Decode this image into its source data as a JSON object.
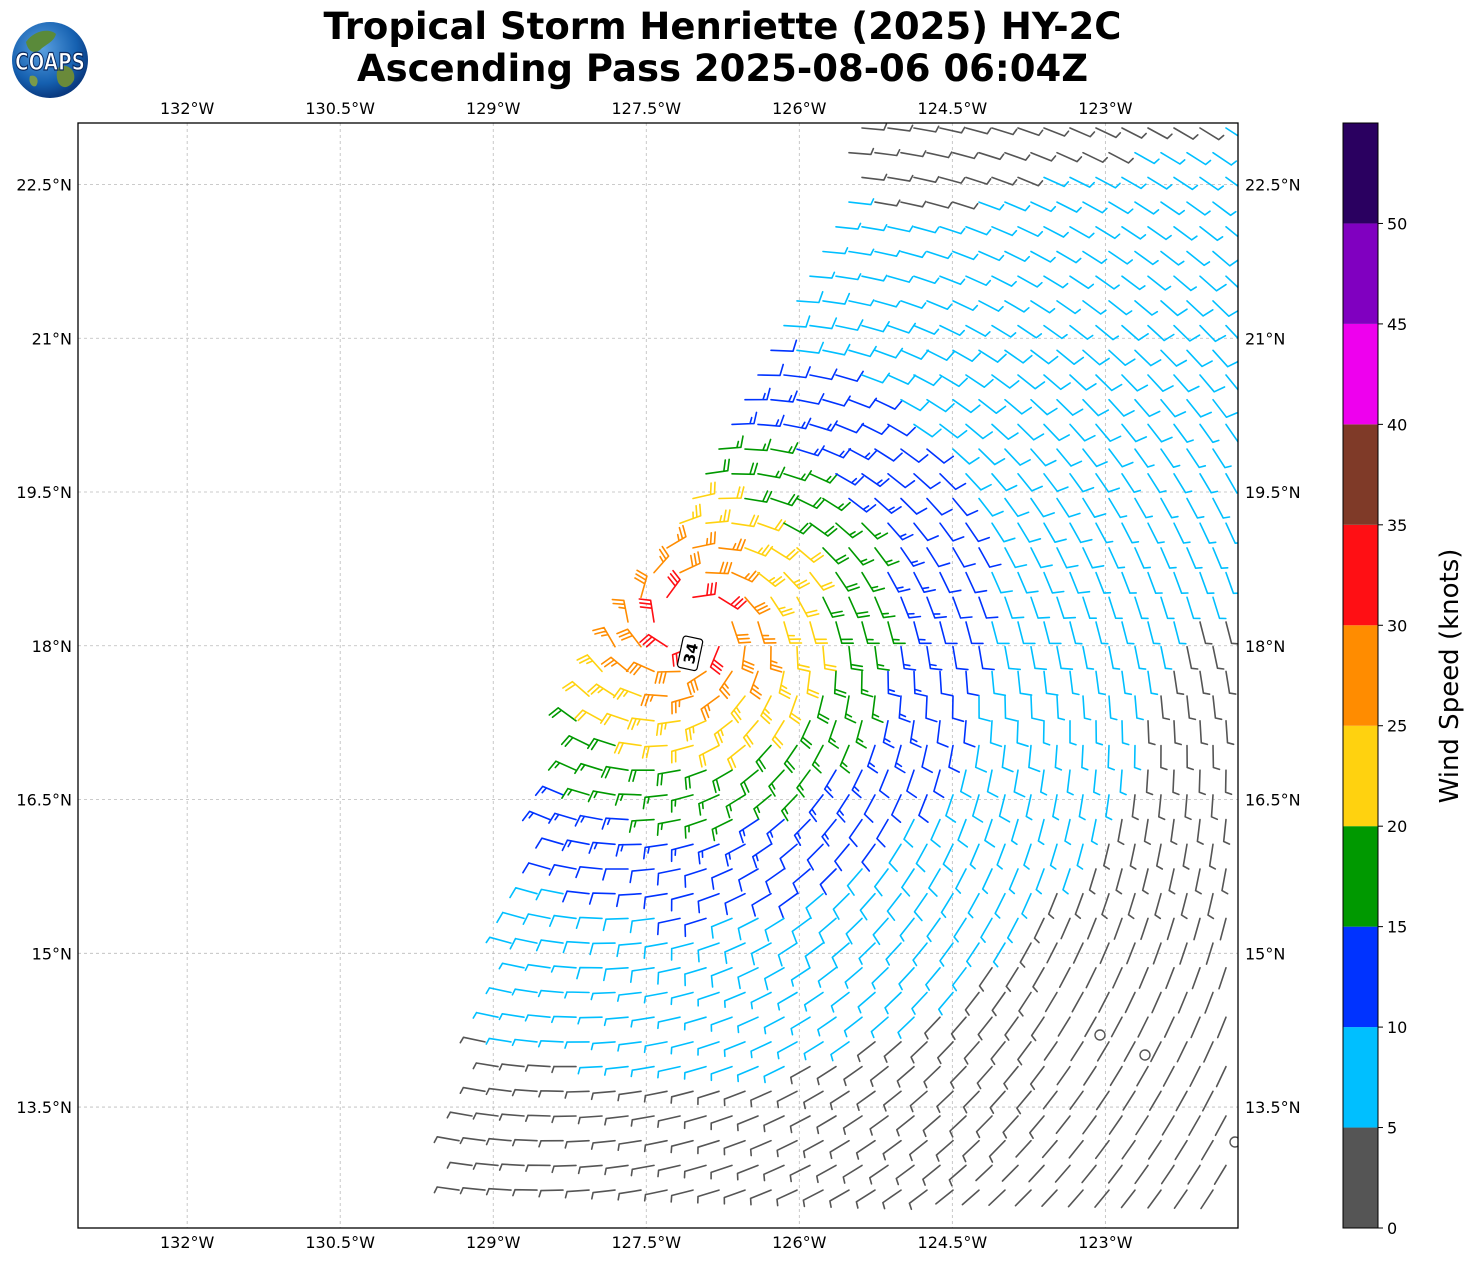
{
  "title": {
    "line1": "Tropical Storm Henriette (2025) HY-2C",
    "line2": "Ascending Pass 2025-08-06 06:04Z"
  },
  "logo": {
    "text": "COAPS",
    "icon": "globe-icon"
  },
  "map": {
    "lon_ticks": [
      {
        "value": -132,
        "label": "132°W"
      },
      {
        "value": -130.5,
        "label": "130.5°W"
      },
      {
        "value": -129,
        "label": "129°W"
      },
      {
        "value": -127.5,
        "label": "127.5°W"
      },
      {
        "value": -126,
        "label": "126°W"
      },
      {
        "value": -124.5,
        "label": "124.5°W"
      },
      {
        "value": -123,
        "label": "123°W"
      }
    ],
    "lat_ticks": [
      {
        "value": 22.5,
        "label": "22.5°N"
      },
      {
        "value": 21,
        "label": "21°N"
      },
      {
        "value": 19.5,
        "label": "19.5°N"
      },
      {
        "value": 18,
        "label": "18°N"
      },
      {
        "value": 16.5,
        "label": "16.5°N"
      },
      {
        "value": 15,
        "label": "15°N"
      },
      {
        "value": 13.5,
        "label": "13.5°N"
      }
    ],
    "lon_range": [
      -133.07,
      -121.7
    ],
    "lat_range": [
      12.32,
      23.1
    ],
    "storm_center": {
      "lon": -127.07,
      "lat": 18.2,
      "label": "34"
    },
    "grid": true
  },
  "colorbar": {
    "label": "Wind Speed (knots)",
    "ticks": [
      "0",
      "5",
      "10",
      "15",
      "20",
      "25",
      "30",
      "35",
      "40",
      "45",
      "50"
    ],
    "bins": [
      {
        "min": 0,
        "max": 5,
        "color": "#555555"
      },
      {
        "min": 5,
        "max": 10,
        "color": "#00bfff"
      },
      {
        "min": 10,
        "max": 15,
        "color": "#0033ff"
      },
      {
        "min": 15,
        "max": 20,
        "color": "#009900"
      },
      {
        "min": 20,
        "max": 25,
        "color": "#ffd20f"
      },
      {
        "min": 25,
        "max": 30,
        "color": "#ff8c00"
      },
      {
        "min": 30,
        "max": 35,
        "color": "#ff0f14"
      },
      {
        "min": 35,
        "max": 40,
        "color": "#7f3a28"
      },
      {
        "min": 40,
        "max": 45,
        "color": "#ee00ee"
      },
      {
        "min": 45,
        "max": 50,
        "color": "#8000c0"
      },
      {
        "min": 50,
        "max": 55,
        "color": "#2a0060"
      }
    ]
  }
}
